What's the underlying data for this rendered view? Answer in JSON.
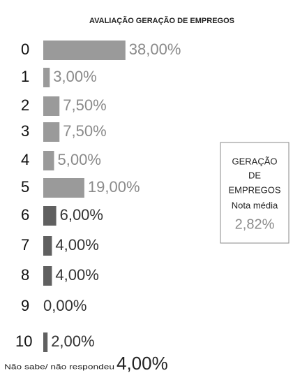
{
  "chart_data": {
    "type": "bar",
    "orientation": "horizontal",
    "title": "AVALIAÇÃO GERAÇÃO DE EMPREGOS",
    "categories": [
      "0",
      "1",
      "2",
      "3",
      "4",
      "5",
      "6",
      "7",
      "8",
      "9",
      "10",
      "Não sabe/ não respondeu"
    ],
    "values": [
      38,
      3,
      7.5,
      7.5,
      5,
      19,
      6,
      4,
      4,
      0,
      2,
      4
    ],
    "value_labels": [
      "38,00%",
      "3,00%",
      "7,50%",
      "7,50%",
      "5,00%",
      "19,00%",
      "6,00%",
      "4,00%",
      "4,00%",
      "0,00%",
      "2,00%",
      "4,00%"
    ],
    "colors": [
      "#9a9a9a",
      "#9a9a9a",
      "#9a9a9a",
      "#9a9a9a",
      "#9a9a9a",
      "#9a9a9a",
      "#606060",
      "#606060",
      "#606060",
      "#606060",
      "#606060",
      "#606060"
    ],
    "summary_box": {
      "lines": [
        "GERAÇÃO",
        "DE",
        "EMPREGOS",
        "Nota média"
      ],
      "value": "2,82%"
    }
  }
}
